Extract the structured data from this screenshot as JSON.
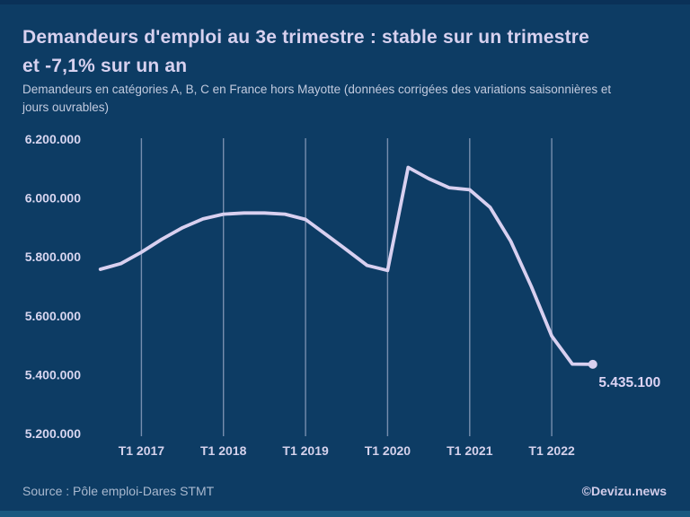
{
  "header": {
    "title": "Demandeurs d'emploi au 3e trimestre : stable sur un trimestre\net -7,1% sur un an",
    "subtitle": "Demandeurs en catégories A, B, C en France hors Mayotte (données corrigées des variations saisonnières et\njours ouvrables)"
  },
  "footer": {
    "source": "Source : Pôle emploi-Dares STMT",
    "credit": "©Devizu.news"
  },
  "colors": {
    "background": "#0d3c64",
    "top_bar": "#0a3158",
    "bottom_bar": "#1a587f",
    "line": "#d8d0f0",
    "grid": "rgba(205,210,235,0.55)",
    "title_text": "#d7d1ef",
    "subtitle_text": "#c2cbdf",
    "axis_text": "#d8d6f0",
    "annotation_text": "#ddd4f4",
    "source_text": "#a9b9cf",
    "credit_text": "#d2cdea"
  },
  "chart_data": {
    "type": "line",
    "title": "Demandeurs d'emploi au 3e trimestre : stable sur un trimestre et -7,1% sur un an",
    "subtitle": "Demandeurs en catégories A, B, C en France hors Mayotte (données corrigées des variations saisonnières et jours ouvrables)",
    "categories": [
      "T3 2016",
      "T4 2016",
      "T1 2017",
      "T2 2017",
      "T3 2017",
      "T4 2017",
      "T1 2018",
      "T2 2018",
      "T3 2018",
      "T4 2018",
      "T1 2019",
      "T2 2019",
      "T3 2019",
      "T4 2019",
      "T1 2020",
      "T2 2020",
      "T3 2020",
      "T4 2020",
      "T1 2021",
      "T2 2021",
      "T3 2021",
      "T4 2021",
      "T1 2022",
      "T2 2022",
      "T3 2022"
    ],
    "values": [
      5758000,
      5777000,
      5816000,
      5860000,
      5899000,
      5929000,
      5945000,
      5949000,
      5949000,
      5945000,
      5927000,
      5876000,
      5824000,
      5771000,
      5754000,
      6104000,
      6066000,
      6035000,
      6028000,
      5968000,
      5853000,
      5700000,
      5531000,
      5436000,
      5435100
    ],
    "ylim": [
      5200000,
      6200000
    ],
    "y_ticks": [
      {
        "value": 6200000,
        "label": "6.200.000"
      },
      {
        "value": 6000000,
        "label": "6.000.000"
      },
      {
        "value": 5800000,
        "label": "5.800.000"
      },
      {
        "value": 5600000,
        "label": "5.600.000"
      },
      {
        "value": 5400000,
        "label": "5.400.000"
      },
      {
        "value": 5200000,
        "label": "5.200.000"
      }
    ],
    "x_ticks": [
      {
        "label": "T1 2017",
        "q_index": 2
      },
      {
        "label": "T1 2018",
        "q_index": 6
      },
      {
        "label": "T1 2019",
        "q_index": 10
      },
      {
        "label": "T1 2020",
        "q_index": 14
      },
      {
        "label": "T1 2021",
        "q_index": 18
      },
      {
        "label": "T1 2022",
        "q_index": 22
      }
    ],
    "last_point_label": "5.435.100",
    "grid": "vertical-only",
    "legend": false,
    "xlabel": "",
    "ylabel": ""
  }
}
